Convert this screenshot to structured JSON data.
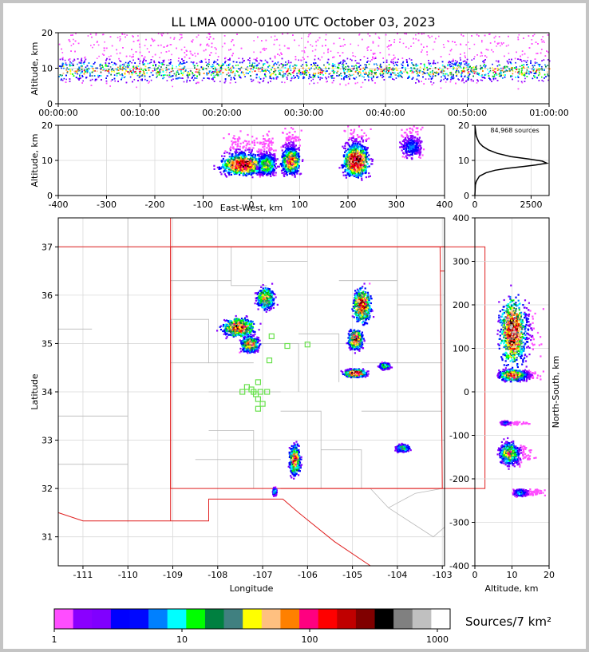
{
  "chart_data": [
    {
      "type": "heatmap",
      "panel": "altitude-time",
      "title": "LL LMA 0000-0100 UTC October 03, 2023",
      "xlabel": "",
      "ylabel": "Altitude, km",
      "xticks": [
        "00:00:00",
        "00:10:00",
        "00:20:00",
        "00:30:00",
        "00:40:00",
        "00:50:00",
        "01:00:00"
      ],
      "xlim_minutes": [
        0,
        60
      ],
      "yticks": [
        0,
        10,
        20
      ],
      "ylim": [
        0,
        20
      ],
      "band": {
        "core_altitude_km": 9.5,
        "range_km": [
          3,
          20
        ]
      }
    },
    {
      "type": "heatmap",
      "panel": "altitude-east-west",
      "xlabel": "East-West, km",
      "ylabel": "Altitude, km",
      "xticks": [
        -400,
        -300,
        -200,
        -100,
        0,
        100,
        200,
        300,
        400
      ],
      "xlim": [
        -400,
        400
      ],
      "yticks": [
        0,
        10,
        20
      ],
      "ylim": [
        0,
        20
      ],
      "clusters_km": [
        {
          "x": -20,
          "alt": 9,
          "w": 60,
          "h": 4,
          "peak": 0.95
        },
        {
          "x": 30,
          "alt": 9,
          "w": 25,
          "h": 4,
          "peak": 0.6
        },
        {
          "x": 80,
          "alt": 10,
          "w": 25,
          "h": 5,
          "peak": 0.8
        },
        {
          "x": 215,
          "alt": 10,
          "w": 35,
          "h": 6,
          "peak": 1.0
        },
        {
          "x": 330,
          "alt": 14,
          "w": 30,
          "h": 4,
          "peak": 0.3
        }
      ]
    },
    {
      "type": "line",
      "panel": "altitude-histogram",
      "annotation": "84,968 sources",
      "xticks": [
        0,
        2500
      ],
      "xlim": [
        0,
        3300
      ],
      "yticks": [
        0,
        10,
        20
      ],
      "ylim": [
        0,
        20
      ],
      "x": [
        0,
        20,
        60,
        200,
        500,
        900,
        1500,
        2200,
        2700,
        3200,
        3000,
        2400,
        1600,
        1000,
        600,
        350,
        200,
        120,
        60,
        20,
        0
      ],
      "y": [
        0,
        3,
        4,
        5.5,
        6.5,
        7.2,
        7.8,
        8.3,
        8.7,
        9.2,
        9.8,
        10.4,
        11.1,
        12,
        13,
        14,
        15,
        16,
        17,
        19,
        20
      ]
    },
    {
      "type": "heatmap",
      "panel": "plan-view",
      "xlabel": "Longitude",
      "ylabel": "Latitude",
      "xticks": [
        -111,
        -110,
        -109,
        -108,
        -107,
        -106,
        -105,
        -104,
        -103
      ],
      "xlim": [
        -111.55,
        -102.95
      ],
      "yticks": [
        31,
        32,
        33,
        34,
        35,
        36,
        37
      ],
      "ylim": [
        30.4,
        37.6
      ],
      "network_area": {
        "lon": [
          -109.05,
          -102.05
        ],
        "lat": [
          32.0,
          37.0
        ]
      },
      "stations": [
        [
          -106.8,
          35.15
        ],
        [
          -106.45,
          34.95
        ],
        [
          -106.0,
          34.98
        ],
        [
          -106.85,
          34.65
        ],
        [
          -107.1,
          34.2
        ],
        [
          -107.25,
          34.05
        ],
        [
          -107.35,
          34.1
        ],
        [
          -107.2,
          34.0
        ],
        [
          -107.05,
          34.0
        ],
        [
          -106.9,
          34.0
        ],
        [
          -107.45,
          34.0
        ],
        [
          -107.15,
          33.95
        ],
        [
          -107.1,
          33.85
        ],
        [
          -107.0,
          33.75
        ],
        [
          -107.1,
          33.65
        ]
      ],
      "clusters": [
        {
          "lon": -107.55,
          "lat": 35.35,
          "dlon": 0.45,
          "dlat": 0.25,
          "peak": 0.9
        },
        {
          "lon": -106.95,
          "lat": 35.95,
          "dlon": 0.25,
          "dlat": 0.3,
          "peak": 0.7
        },
        {
          "lon": -107.3,
          "lat": 35.0,
          "dlon": 0.25,
          "dlat": 0.2,
          "peak": 0.8
        },
        {
          "lon": -104.8,
          "lat": 35.8,
          "dlon": 0.25,
          "dlat": 0.45,
          "peak": 0.9
        },
        {
          "lon": -104.95,
          "lat": 35.1,
          "dlon": 0.2,
          "dlat": 0.25,
          "peak": 0.9
        },
        {
          "lon": -104.95,
          "lat": 34.4,
          "dlon": 0.3,
          "dlat": 0.1,
          "peak": 1.0
        },
        {
          "lon": -104.3,
          "lat": 34.55,
          "dlon": 0.15,
          "dlat": 0.08,
          "peak": 0.6
        },
        {
          "lon": -106.3,
          "lat": 32.6,
          "dlon": 0.15,
          "dlat": 0.4,
          "peak": 0.8
        },
        {
          "lon": -106.75,
          "lat": 31.95,
          "dlon": 0.05,
          "dlat": 0.1,
          "peak": 0.5
        },
        {
          "lon": -103.9,
          "lat": 32.85,
          "dlon": 0.2,
          "dlat": 0.1,
          "peak": 0.5
        }
      ]
    },
    {
      "type": "heatmap",
      "panel": "north-south-altitude",
      "xlabel": "Altitude, km",
      "ylabel": "North-South, km",
      "xticks": [
        0,
        10,
        20
      ],
      "xlim": [
        0,
        20
      ],
      "yticks": [
        -400,
        -300,
        -200,
        -100,
        0,
        100,
        200,
        300,
        400
      ],
      "ylim": [
        -400,
        400
      ],
      "clusters_km": [
        {
          "alt": 10,
          "y": 140,
          "w": 4,
          "h": 90,
          "peak": 1.0
        },
        {
          "alt": 10,
          "y": 40,
          "w": 4,
          "h": 15,
          "peak": 0.9
        },
        {
          "alt": 9,
          "y": -140,
          "w": 3,
          "h": 30,
          "peak": 0.7
        },
        {
          "alt": 12,
          "y": -230,
          "w": 2,
          "h": 10,
          "peak": 0.4
        },
        {
          "alt": 8,
          "y": -70,
          "w": 1.5,
          "h": 5,
          "peak": 0.3
        }
      ]
    }
  ],
  "colorbar": {
    "label": "Sources/7 km²",
    "ticks": [
      "1",
      "10",
      "100",
      "1000"
    ],
    "colors": [
      "#ff4dff",
      "#8a00ff",
      "#8000ff",
      "#0000ff",
      "#0008ff",
      "#0080ff",
      "#00ffff",
      "#00ff00",
      "#008040",
      "#408080",
      "#ffff00",
      "#ffc080",
      "#ff8000",
      "#ff0080",
      "#ff0000",
      "#c00000",
      "#800000",
      "#000000",
      "#808080",
      "#c0c0c0",
      "#ffffff"
    ]
  }
}
